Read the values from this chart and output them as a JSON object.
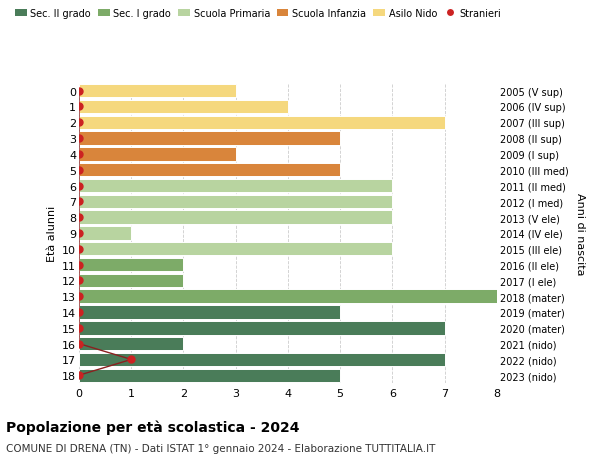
{
  "ages": [
    18,
    17,
    16,
    15,
    14,
    13,
    12,
    11,
    10,
    9,
    8,
    7,
    6,
    5,
    4,
    3,
    2,
    1,
    0
  ],
  "right_labels": [
    "2005 (V sup)",
    "2006 (IV sup)",
    "2007 (III sup)",
    "2008 (II sup)",
    "2009 (I sup)",
    "2010 (III med)",
    "2011 (II med)",
    "2012 (I med)",
    "2013 (V ele)",
    "2014 (IV ele)",
    "2015 (III ele)",
    "2016 (II ele)",
    "2017 (I ele)",
    "2018 (mater)",
    "2019 (mater)",
    "2020 (mater)",
    "2021 (nido)",
    "2022 (nido)",
    "2023 (nido)"
  ],
  "bar_values": [
    5,
    7,
    2,
    7,
    5,
    8,
    2,
    2,
    6,
    1,
    6,
    6,
    6,
    5,
    3,
    5,
    7,
    4,
    3
  ],
  "bar_colors": [
    "#4a7c59",
    "#4a7c59",
    "#4a7c59",
    "#4a7c59",
    "#4a7c59",
    "#7dab68",
    "#7dab68",
    "#7dab68",
    "#b8d4a0",
    "#b8d4a0",
    "#b8d4a0",
    "#b8d4a0",
    "#b8d4a0",
    "#d9853b",
    "#d9853b",
    "#d9853b",
    "#f5d87e",
    "#f5d87e",
    "#f5d87e"
  ],
  "stranieri_values": [
    0,
    1,
    0,
    0,
    0,
    0,
    0,
    0,
    0,
    0,
    0,
    0,
    0,
    0,
    0,
    0,
    0,
    0,
    0
  ],
  "legend_labels": [
    "Sec. II grado",
    "Sec. I grado",
    "Scuola Primaria",
    "Scuola Infanzia",
    "Asilo Nido",
    "Stranieri"
  ],
  "legend_colors": [
    "#4a7c59",
    "#7dab68",
    "#b8d4a0",
    "#d9853b",
    "#f5d87e",
    "#cc2222"
  ],
  "title": "Popolazione per età scolastica - 2024",
  "subtitle": "COMUNE DI DRENA (TN) - Dati ISTAT 1° gennaio 2024 - Elaborazione TUTTITALIA.IT",
  "ylabel_left": "Età alunni",
  "ylabel_right": "Anni di nascita",
  "xlim": [
    0,
    8
  ],
  "background_color": "#ffffff",
  "grid_color": "#cccccc",
  "bar_height": 0.85,
  "stranieri_line_color": "#8b2020",
  "stranieri_dot_color": "#cc2222"
}
